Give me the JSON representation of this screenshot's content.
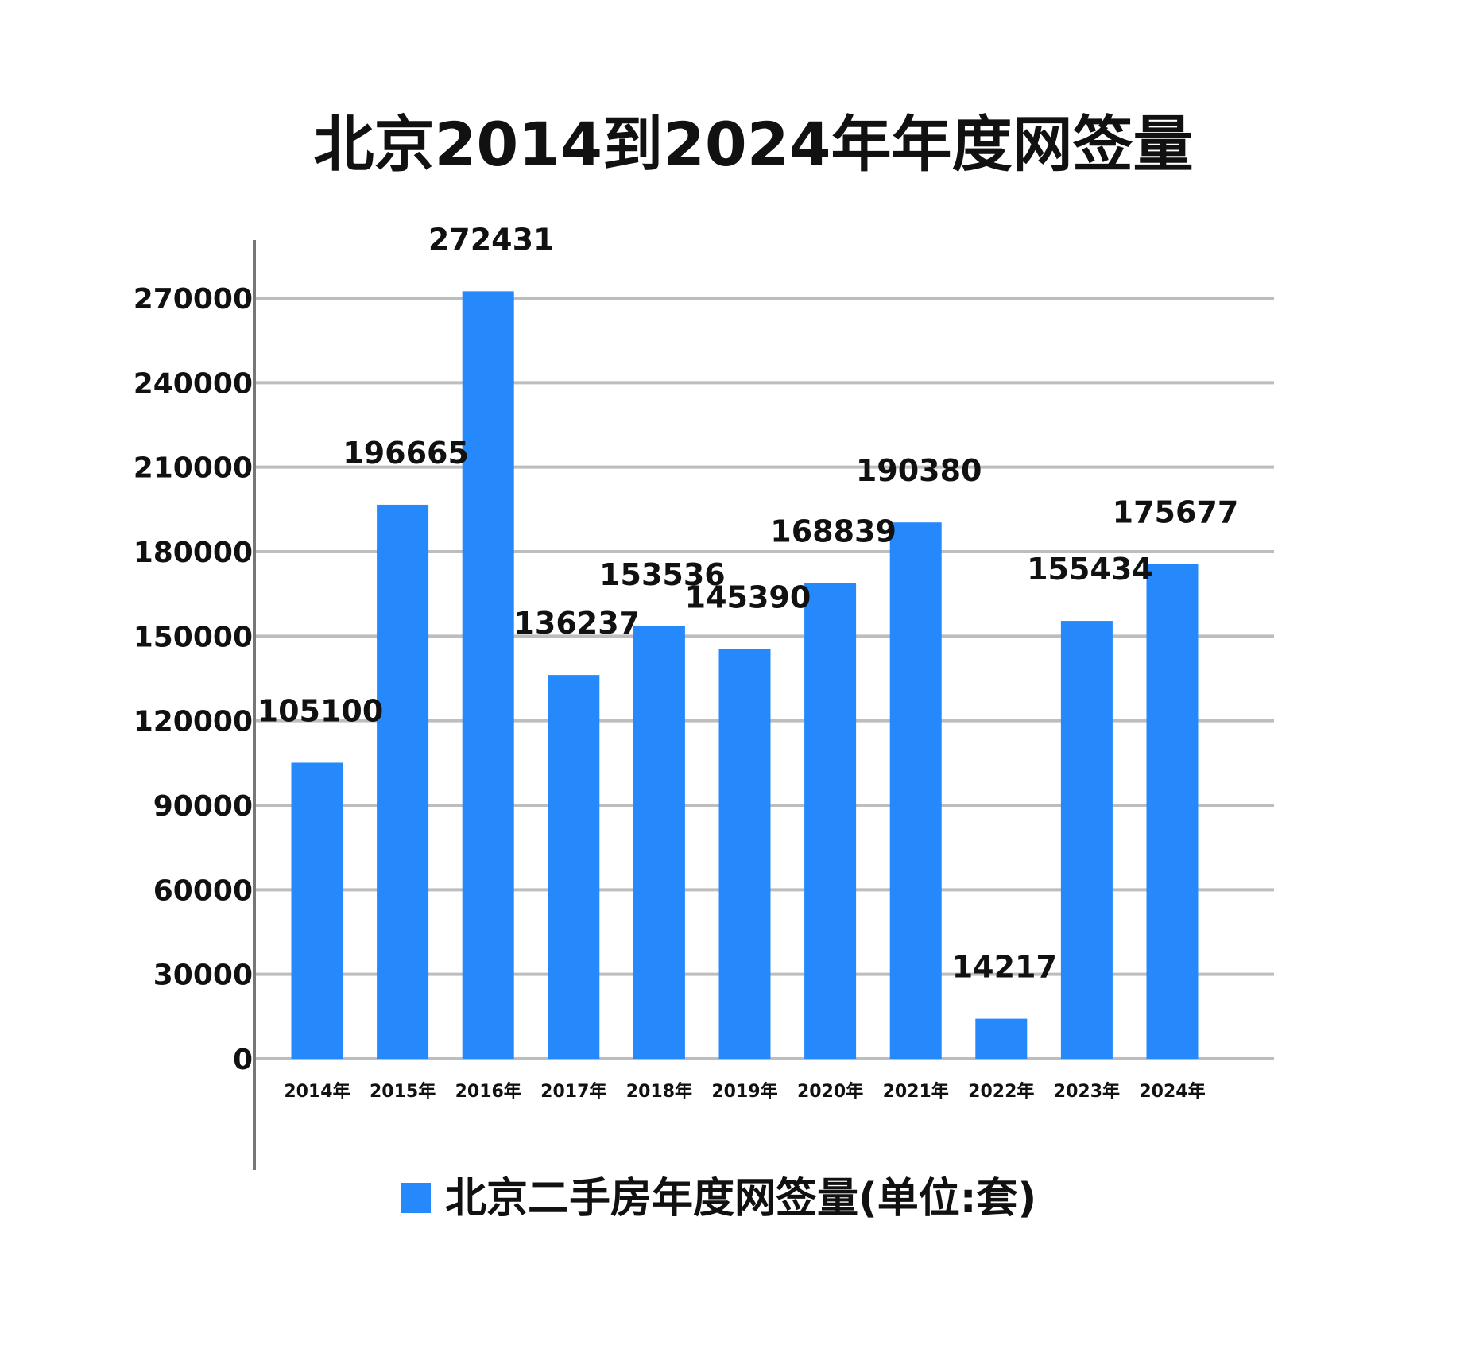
{
  "chart_data": {
    "type": "bar",
    "title": "北京2014到2024年年度网签量",
    "categories": [
      "2014年",
      "2015年",
      "2016年",
      "2017年",
      "2018年",
      "2019年",
      "2020年",
      "2021年",
      "2022年",
      "2023年",
      "2024年"
    ],
    "series": [
      {
        "name": "北京二手房年度网签量(单位:套)",
        "values": [
          105100,
          196665,
          272431,
          136237,
          153536,
          145390,
          168839,
          190380,
          14217,
          155434,
          175677
        ],
        "color": "#2589FB"
      }
    ],
    "ylim": [
      0,
      270000
    ],
    "yticks": [
      "0",
      "30000",
      "60000",
      "90000",
      "120000",
      "150000",
      "180000",
      "210000",
      "240000",
      "270000"
    ],
    "grid": true,
    "legend": "bottom"
  }
}
